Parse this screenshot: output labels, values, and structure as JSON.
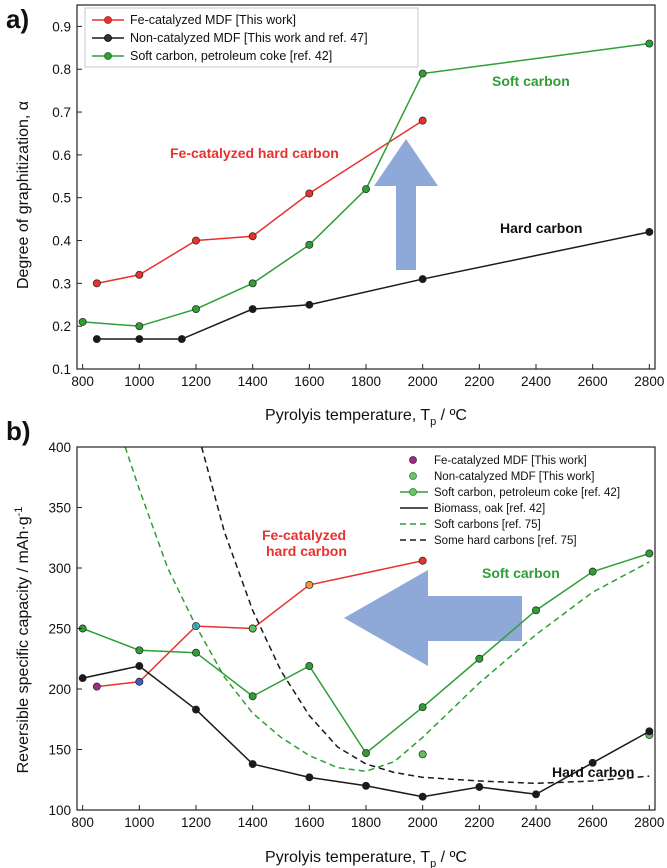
{
  "figure": {
    "panels": [
      "a)",
      "b)"
    ]
  },
  "chart_data": [
    {
      "type": "line",
      "panel": "a)",
      "xlabel": "Pyrolyis temperature, T",
      "xlabel_sub": "p",
      "xlabel_unit": " / ºC",
      "ylabel": "Degree of graphitization, α",
      "xlim": [
        780,
        2820
      ],
      "ylim": [
        0.1,
        0.95
      ],
      "xticks": [
        800,
        1000,
        1200,
        1400,
        1600,
        1800,
        2000,
        2200,
        2400,
        2600,
        2800
      ],
      "yticks": [
        0.1,
        0.2,
        0.3,
        0.4,
        0.5,
        0.6,
        0.7,
        0.8,
        0.9
      ],
      "ytick_labels": [
        "0.1",
        "0.2",
        "0.3",
        "0.4",
        "0.5",
        "0.6",
        "0.7",
        "0.8",
        "0.9"
      ],
      "legend_position": "top-left",
      "series": [
        {
          "name": "Fe-catalyzed MDF [This work]",
          "color": "#e8322f",
          "marker": "circle",
          "x": [
            850,
            1000,
            1200,
            1400,
            1600,
            2000
          ],
          "y": [
            0.3,
            0.32,
            0.4,
            0.41,
            0.51,
            0.68
          ]
        },
        {
          "name": "Non-catalyzed MDF [This work and ref. 47]",
          "color": "#1a1a1a",
          "marker": "circle",
          "x": [
            850,
            1000,
            1150,
            1400,
            1600,
            2000,
            2800
          ],
          "y": [
            0.17,
            0.17,
            0.17,
            0.24,
            0.25,
            0.31,
            0.42
          ]
        },
        {
          "name": "Soft carbon, petroleum coke [ref. 42]",
          "color": "#2e9e35",
          "marker": "circle",
          "x": [
            800,
            1000,
            1200,
            1400,
            1600,
            1800,
            2000,
            2800
          ],
          "y": [
            0.21,
            0.2,
            0.24,
            0.3,
            0.39,
            0.52,
            0.79,
            0.86
          ]
        }
      ],
      "annotations": [
        {
          "text": "Fe-catalyzed hard carbon",
          "color": "#e8322f"
        },
        {
          "text": "Soft carbon",
          "color": "#2e9e35"
        },
        {
          "text": "Hard carbon",
          "color": "#111111"
        }
      ],
      "arrow": {
        "direction": "up",
        "color": "#8ea8d8"
      }
    },
    {
      "type": "line",
      "panel": "b)",
      "xlabel": "Pyrolyis temperature, T",
      "xlabel_sub": "p",
      "xlabel_unit": " / ºC",
      "ylabel": "Reversible specific capacity / mAh·g",
      "ylabel_sup": "-1",
      "xlim": [
        780,
        2820
      ],
      "ylim": [
        100,
        400
      ],
      "xticks": [
        800,
        1000,
        1200,
        1400,
        1600,
        1800,
        2000,
        2200,
        2400,
        2600,
        2800
      ],
      "yticks": [
        100,
        150,
        200,
        250,
        300,
        350,
        400
      ],
      "legend_position": "top-right",
      "series": [
        {
          "name": "Fe-catalyzed MDF [This work]",
          "color": "#e8322f",
          "marker_color": "#9b2d87",
          "line": "solid",
          "points_colors": [
            "#9b2d87",
            "#3a5fc8",
            "#38b6e8",
            "#4aa8d6",
            "#f39a3a",
            "#e8322f"
          ],
          "x": [
            850,
            1000,
            1200,
            1400,
            1600,
            2000
          ],
          "y": [
            202,
            206,
            252,
            250,
            286,
            306
          ]
        },
        {
          "name": "Non-catalyzed MDF [This work]",
          "color": "#5fc05f",
          "marker": "circle",
          "line": "none",
          "x": [
            1400,
            2000,
            2800
          ],
          "y": [
            250,
            146,
            162
          ]
        },
        {
          "name": "Soft carbon, petroleum coke [ref. 42]",
          "color": "#2e9e35",
          "marker": "circle",
          "line": "solid",
          "x": [
            800,
            1000,
            1200,
            1400,
            1600,
            1800,
            2000,
            2200,
            2400,
            2600,
            2800
          ],
          "y": [
            250,
            232,
            230,
            194,
            219,
            147,
            185,
            225,
            265,
            297,
            312
          ]
        },
        {
          "name": "Biomass, oak [ref. 42]",
          "color": "#1a1a1a",
          "marker": "circle",
          "line": "solid",
          "x": [
            800,
            1000,
            1200,
            1400,
            1600,
            1800,
            2000,
            2200,
            2400,
            2600,
            2800
          ],
          "y": [
            209,
            219,
            183,
            138,
            127,
            120,
            111,
            119,
            113,
            139,
            165
          ]
        },
        {
          "name": "Soft carbons [ref. 75]",
          "color": "#2e9e35",
          "line": "dashed",
          "x": [
            950,
            1000,
            1100,
            1200,
            1300,
            1400,
            1500,
            1600,
            1700,
            1800,
            1900,
            2000,
            2200,
            2400,
            2600,
            2800
          ],
          "y": [
            400,
            365,
            300,
            252,
            210,
            180,
            160,
            145,
            135,
            132,
            140,
            160,
            205,
            245,
            280,
            305
          ]
        },
        {
          "name": "Some hard carbons [ref. 75]",
          "color": "#1a1a1a",
          "line": "dashed",
          "x": [
            1220,
            1300,
            1400,
            1500,
            1600,
            1700,
            1800,
            1900,
            2000,
            2200,
            2400,
            2600,
            2800
          ],
          "y": [
            400,
            330,
            265,
            215,
            178,
            152,
            138,
            131,
            127,
            124,
            122,
            124,
            128
          ]
        }
      ],
      "annotations": [
        {
          "text": "Fe-catalyzed",
          "color": "#e8322f"
        },
        {
          "text": "hard carbon",
          "color": "#e8322f"
        },
        {
          "text": "Soft carbon",
          "color": "#2e9e35"
        },
        {
          "text": "Hard carbon",
          "color": "#111111"
        }
      ],
      "arrow": {
        "direction": "left",
        "color": "#8ea8d8"
      }
    }
  ]
}
